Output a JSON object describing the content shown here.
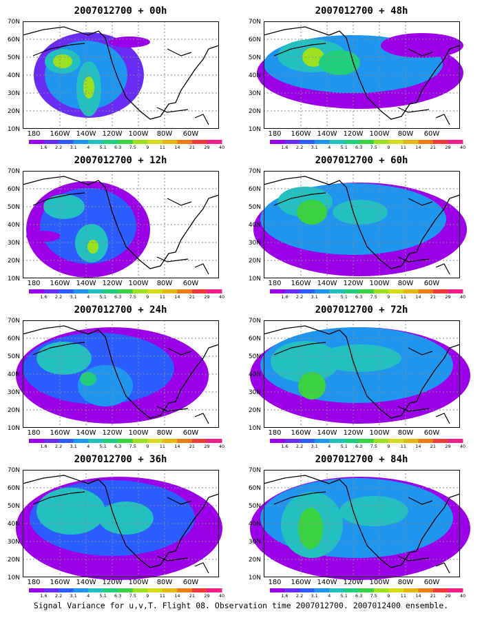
{
  "panels": [
    {
      "title": "2007012700 + 00h"
    },
    {
      "title": "2007012700 + 48h"
    },
    {
      "title": "2007012700 + 12h"
    },
    {
      "title": "2007012700 + 60h"
    },
    {
      "title": "2007012700 + 24h"
    },
    {
      "title": "2007012700 + 72h"
    },
    {
      "title": "2007012700 + 36h"
    },
    {
      "title": "2007012700 + 84h"
    }
  ],
  "lat_labels": [
    "70N",
    "60N",
    "50N",
    "40N",
    "30N",
    "20N",
    "10N"
  ],
  "lon_labels": [
    "180",
    "160W",
    "140W",
    "120W",
    "100W",
    "80W",
    "60W"
  ],
  "colorbar_labels": [
    "1.6",
    "2.2",
    "3.1",
    "4",
    "5.1",
    "6.3",
    "7.5",
    "9",
    "11",
    "14",
    "21",
    "29",
    "40"
  ],
  "colorbar_colors": [
    "#9b00e8",
    "#6a2bf5",
    "#2a5cff",
    "#1e96f0",
    "#22c0c0",
    "#1fcf7c",
    "#3ad442",
    "#9be021",
    "#d6dc1a",
    "#e8b614",
    "#f07a14",
    "#ef3a3a",
    "#f01e8c"
  ],
  "footer": "Signal Variance for u,v,T. Flight 08. Observation time 2007012700. 2007012400 ensemble."
}
